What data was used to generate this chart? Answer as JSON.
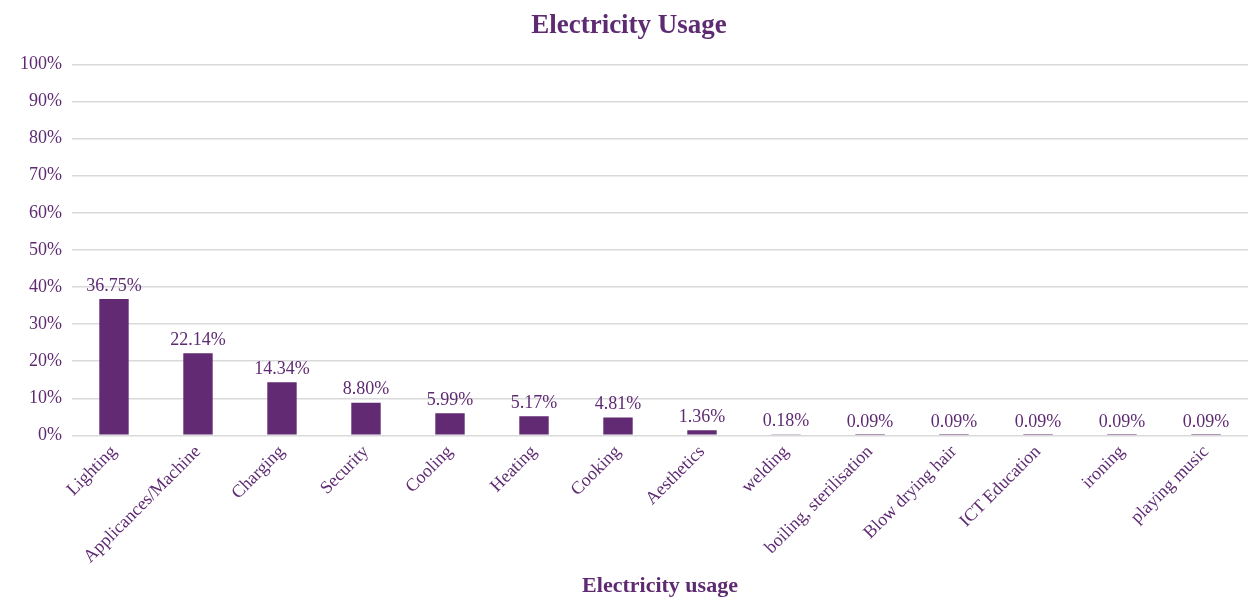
{
  "chart_data": {
    "type": "bar",
    "title": "Electricity Usage",
    "xlabel": "Electricity usage",
    "categories": [
      "Lighting",
      "Applicances/Machine",
      "Charging",
      "Security",
      "Cooling",
      "Heating",
      "Cooking",
      "Aesthetics",
      "welding",
      "boiling, sterilisation",
      "Blow drying hair",
      "ICT Education",
      "ironing",
      "playing music"
    ],
    "values": [
      36.75,
      22.14,
      14.34,
      8.8,
      5.99,
      5.17,
      4.81,
      1.36,
      0.18,
      0.09,
      0.09,
      0.09,
      0.09,
      0.09
    ],
    "value_labels": [
      "36.75%",
      "22.14%",
      "14.34%",
      "8.80%",
      "5.99%",
      "5.17%",
      "4.81%",
      "1.36%",
      "0.18%",
      "0.09%",
      "0.09%",
      "0.09%",
      "0.09%",
      "0.09%"
    ],
    "color": "#622a73",
    "ylim": [
      0,
      100
    ],
    "yticks": [
      {
        "value": 0,
        "label": "0%"
      },
      {
        "value": 10,
        "label": "10%"
      },
      {
        "value": 20,
        "label": "20%"
      },
      {
        "value": 30,
        "label": "30%"
      },
      {
        "value": 40,
        "label": "40%"
      },
      {
        "value": 50,
        "label": "50%"
      },
      {
        "value": 60,
        "label": "60%"
      },
      {
        "value": 70,
        "label": "70%"
      },
      {
        "value": 80,
        "label": "80%"
      },
      {
        "value": 90,
        "label": "90%"
      },
      {
        "value": 100,
        "label": "100%"
      }
    ],
    "grid": "y",
    "legend": false
  }
}
